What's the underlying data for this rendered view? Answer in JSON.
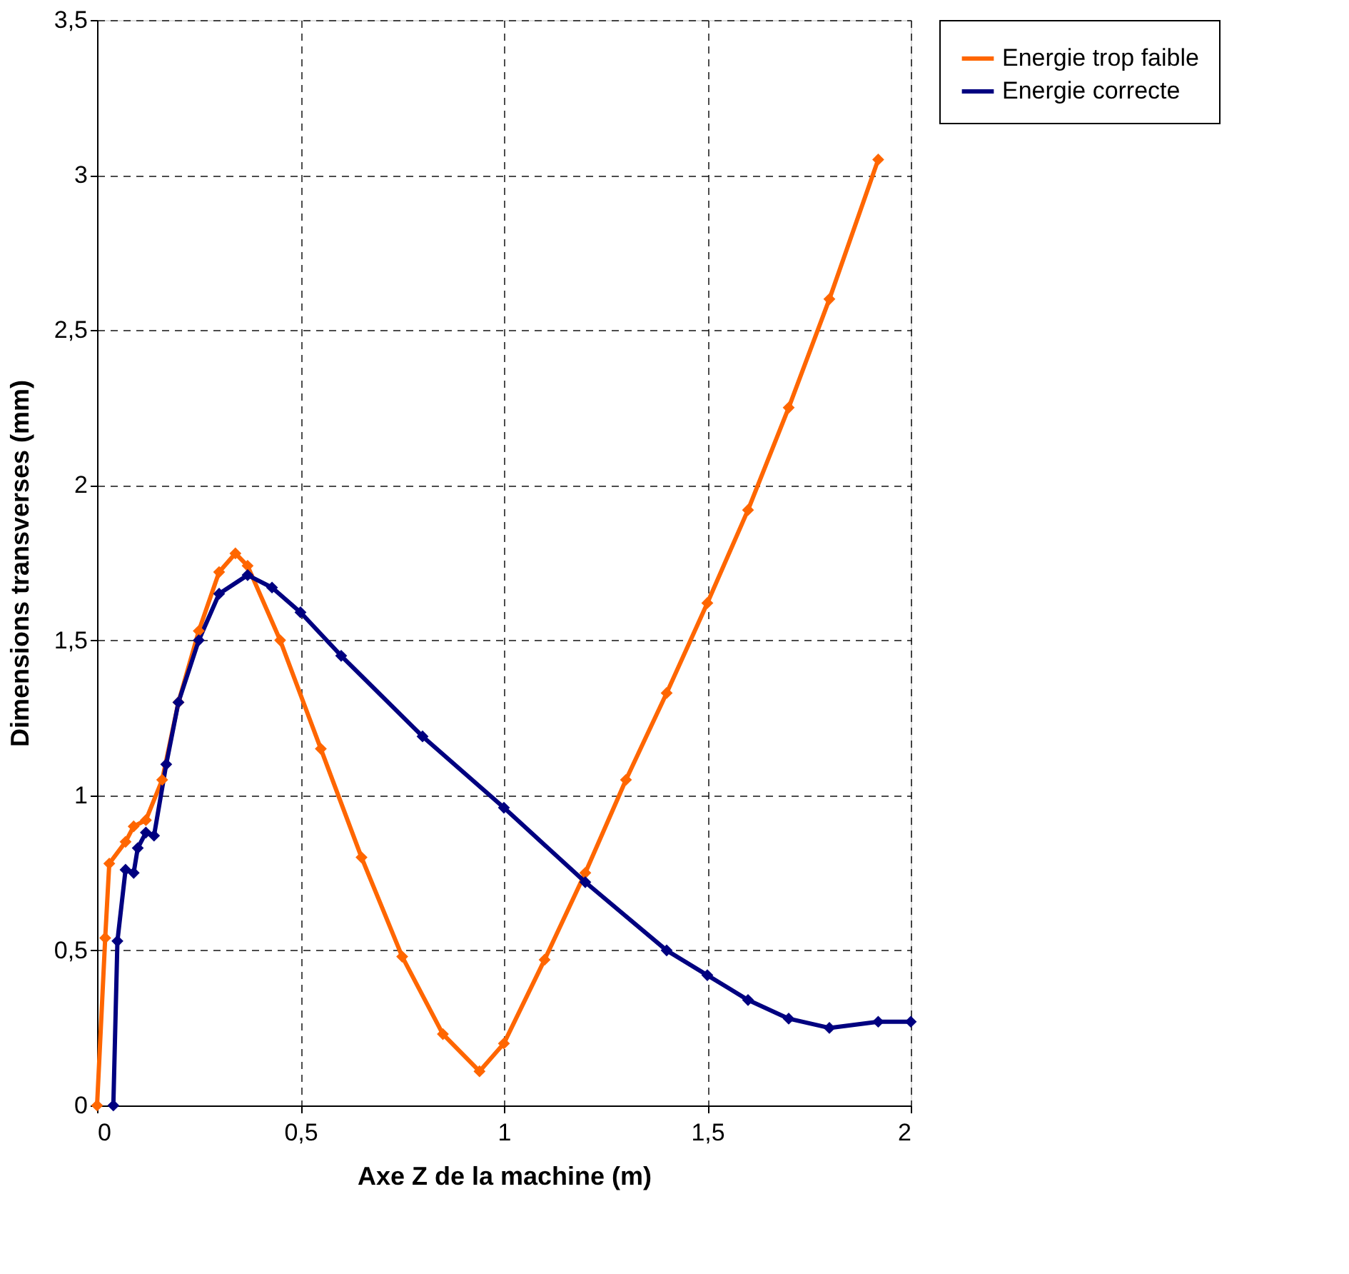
{
  "chart_data": {
    "type": "line",
    "xlabel": "Axe Z de la machine (m)",
    "ylabel": "Dimensions transverses (mm)",
    "xlim": [
      0,
      2
    ],
    "ylim": [
      0,
      3.5
    ],
    "xticks": [
      0,
      {
        "value": 0.5,
        "label": "0,5"
      },
      1,
      {
        "value": 1.5,
        "label": "1,5"
      },
      2
    ],
    "yticks": [
      0,
      {
        "value": 0.5,
        "label": "0,5"
      },
      1,
      {
        "value": 1.5,
        "label": "1,5"
      },
      2,
      {
        "value": 2.5,
        "label": "2,5"
      },
      3,
      {
        "value": 3.5,
        "label": "3,5"
      }
    ],
    "grid": true,
    "legend": "right",
    "marker": "diamond",
    "line_style": "solid",
    "series": [
      {
        "name": "Energie trop faible",
        "color": "#ff6600",
        "x": [
          0.0,
          0.02,
          0.03,
          0.07,
          0.09,
          0.12,
          0.16,
          0.2,
          0.25,
          0.3,
          0.34,
          0.37,
          0.45,
          0.55,
          0.65,
          0.75,
          0.85,
          0.94,
          1.0,
          1.1,
          1.2,
          1.3,
          1.4,
          1.5,
          1.6,
          1.7,
          1.8,
          1.92
        ],
        "values": [
          0,
          0.54,
          0.78,
          0.85,
          0.9,
          0.92,
          1.05,
          1.3,
          1.53,
          1.72,
          1.78,
          1.74,
          1.5,
          1.15,
          0.8,
          0.48,
          0.23,
          0.11,
          0.2,
          0.47,
          0.75,
          1.05,
          1.33,
          1.62,
          1.92,
          2.25,
          2.6,
          3.05
        ]
      },
      {
        "name": "Energie correcte",
        "color": "#000080",
        "x": [
          0.04,
          0.05,
          0.07,
          0.09,
          0.1,
          0.12,
          0.14,
          0.17,
          0.2,
          0.25,
          0.3,
          0.37,
          0.43,
          0.5,
          0.6,
          0.8,
          1.0,
          1.2,
          1.4,
          1.5,
          1.6,
          1.7,
          1.8,
          1.92,
          2.0
        ],
        "values": [
          0,
          0.53,
          0.76,
          0.75,
          0.83,
          0.88,
          0.87,
          1.1,
          1.3,
          1.5,
          1.65,
          1.71,
          1.67,
          1.59,
          1.45,
          1.19,
          0.96,
          0.72,
          0.5,
          0.42,
          0.34,
          0.28,
          0.25,
          0.27,
          0.27
        ]
      }
    ]
  }
}
